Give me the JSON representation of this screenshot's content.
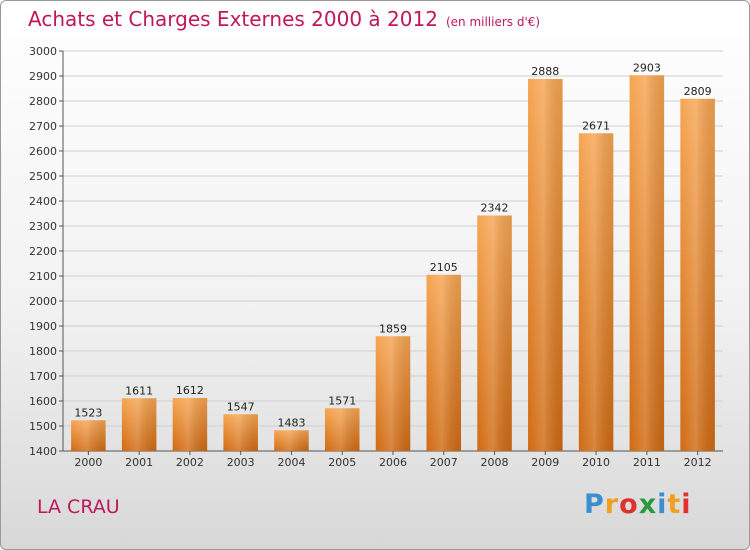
{
  "title": "Achats et Charges Externes 2000 à 2012",
  "subtitle": "(en milliers d'€)",
  "commune": "LA CRAU",
  "logo": [
    "P",
    "r",
    "o",
    "x",
    "i",
    "t",
    "i"
  ],
  "colors": {
    "title": "#c0185a",
    "bar_top": "#f6a552",
    "bar_bottom": "#d06a12",
    "grid": "#cfcfcf",
    "logo": [
      "#3a8fd0",
      "#f0a020",
      "#e03030",
      "#2a9a40",
      "#3a8fd0",
      "#f0a020",
      "#e03030"
    ]
  },
  "chart_data": {
    "type": "bar",
    "categories": [
      "2000",
      "2001",
      "2002",
      "2003",
      "2004",
      "2005",
      "2006",
      "2007",
      "2008",
      "2009",
      "2010",
      "2011",
      "2012"
    ],
    "values": [
      1523,
      1611,
      1612,
      1547,
      1483,
      1571,
      1859,
      2105,
      2342,
      2888,
      2671,
      2903,
      2809
    ],
    "ylim": [
      1400,
      3000
    ],
    "yticks": [
      1400,
      1500,
      1600,
      1700,
      1800,
      1900,
      2000,
      2100,
      2200,
      2300,
      2400,
      2500,
      2600,
      2700,
      2800,
      2900,
      3000
    ],
    "grid": true
  }
}
